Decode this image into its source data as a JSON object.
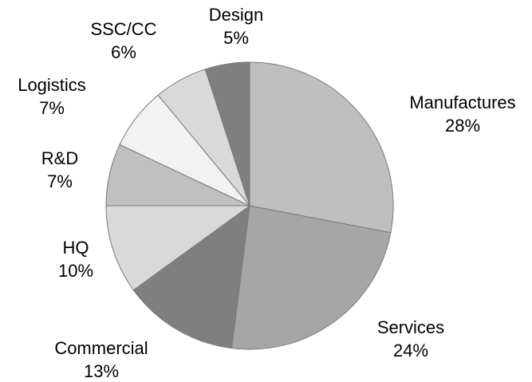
{
  "chart_data": {
    "type": "pie",
    "categories": [
      "Manufactures",
      "Services",
      "Commercial",
      "HQ",
      "R&D",
      "Logistics",
      "SSC/CC",
      "Design"
    ],
    "values": [
      28,
      24,
      13,
      10,
      7,
      7,
      6,
      5
    ],
    "value_labels": [
      "28%",
      "24%",
      "13%",
      "10%",
      "7%",
      "7%",
      "6%",
      "5%"
    ],
    "colors": [
      "#bfbfbf",
      "#a6a6a6",
      "#7f7f7f",
      "#d9d9d9",
      "#c0c0c0",
      "#f2f2f2",
      "#d9d9d9",
      "#7f7f7f"
    ]
  }
}
